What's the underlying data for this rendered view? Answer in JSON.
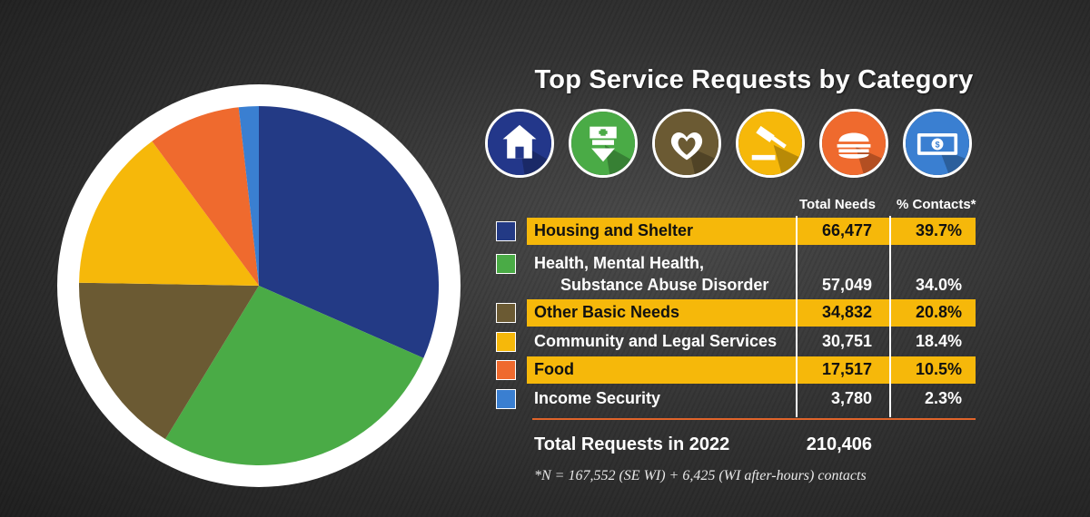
{
  "chart_data": {
    "type": "pie",
    "title": "Top Service Requests by Category",
    "slices": [
      {
        "label": "Housing and Shelter",
        "value": 66477,
        "pct": "39.7%",
        "total_str": "66,477",
        "color": "#233a85",
        "highlight": true
      },
      {
        "label": "Health, Mental Health,",
        "label_line2": "Substance Abuse Disorder",
        "value": 57049,
        "pct": "34.0%",
        "total_str": "57,049",
        "color": "#4aab46",
        "highlight": false
      },
      {
        "label": "Other Basic Needs",
        "value": 34832,
        "pct": "20.8%",
        "total_str": "34,832",
        "color": "#6b5a33",
        "highlight": true
      },
      {
        "label": "Community and Legal Services",
        "value": 30751,
        "pct": "18.4%",
        "total_str": "30,751",
        "color": "#f6b80a",
        "highlight": false
      },
      {
        "label": "Food",
        "value": 17517,
        "pct": "10.5%",
        "total_str": "17,517",
        "color": "#ef6a2e",
        "highlight": true
      },
      {
        "label": "Income Security",
        "value": 3780,
        "pct": "2.3%",
        "total_str": "3,780",
        "color": "#3a7fd1",
        "highlight": false
      }
    ]
  },
  "table": {
    "col_total": "Total Needs",
    "col_pct": "% Contacts*",
    "total_label": "Total Requests in 2022",
    "total_value": "210,406",
    "footnote": "*N = 167,552 (SE WI) + 6,425 (WI after-hours) contacts"
  },
  "icons": [
    {
      "name": "house-icon",
      "color": "#23378a"
    },
    {
      "name": "nurse-icon",
      "color": "#4aab46"
    },
    {
      "name": "heart-hands-icon",
      "color": "#6b5a33"
    },
    {
      "name": "gavel-icon",
      "color": "#f6b80a"
    },
    {
      "name": "burger-icon",
      "color": "#ef6a2e"
    },
    {
      "name": "money-icon",
      "color": "#3a7fd1"
    }
  ]
}
